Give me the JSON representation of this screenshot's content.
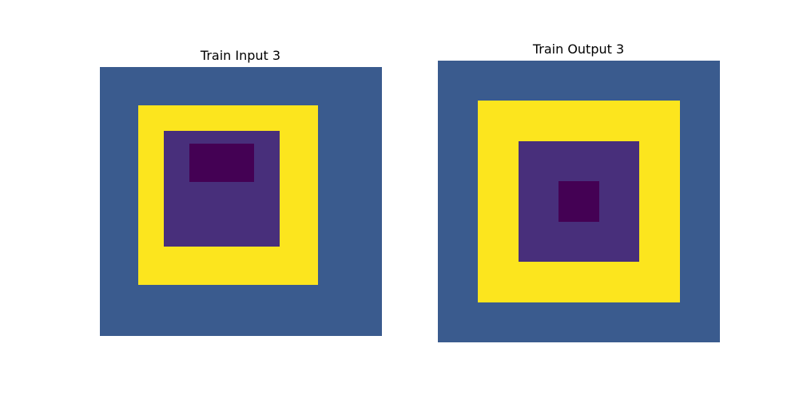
{
  "palette": {
    "0": "#440154",
    "1": "#482f7b",
    "2": "#3a5b8e",
    "3": "#fce51e"
  },
  "panels": [
    {
      "title": "Train Input 3",
      "grid": [
        [
          2,
          2,
          2,
          2,
          2,
          2,
          2,
          2,
          2,
          2,
          2,
          2,
          2,
          2,
          2,
          2,
          2,
          2,
          2,
          2,
          2,
          2
        ],
        [
          2,
          2,
          2,
          2,
          2,
          2,
          2,
          2,
          2,
          2,
          2,
          2,
          2,
          2,
          2,
          2,
          2,
          2,
          2,
          2,
          2,
          2
        ],
        [
          2,
          2,
          2,
          2,
          2,
          2,
          2,
          2,
          2,
          2,
          2,
          2,
          2,
          2,
          2,
          2,
          2,
          2,
          2,
          2,
          2,
          2
        ],
        [
          2,
          2,
          2,
          3,
          3,
          3,
          3,
          3,
          3,
          3,
          3,
          3,
          3,
          3,
          3,
          3,
          3,
          2,
          2,
          2,
          2,
          2
        ],
        [
          2,
          2,
          2,
          3,
          3,
          3,
          3,
          3,
          3,
          3,
          3,
          3,
          3,
          3,
          3,
          3,
          3,
          2,
          2,
          2,
          2,
          2
        ],
        [
          2,
          2,
          2,
          3,
          3,
          1,
          1,
          1,
          1,
          1,
          1,
          1,
          1,
          1,
          3,
          3,
          3,
          2,
          2,
          2,
          2,
          2
        ],
        [
          2,
          2,
          2,
          3,
          3,
          1,
          1,
          0,
          0,
          0,
          0,
          0,
          1,
          1,
          3,
          3,
          3,
          2,
          2,
          2,
          2,
          2
        ],
        [
          2,
          2,
          2,
          3,
          3,
          1,
          1,
          0,
          0,
          0,
          0,
          0,
          1,
          1,
          3,
          3,
          3,
          2,
          2,
          2,
          2,
          2
        ],
        [
          2,
          2,
          2,
          3,
          3,
          1,
          1,
          0,
          0,
          0,
          0,
          0,
          1,
          1,
          3,
          3,
          3,
          2,
          2,
          2,
          2,
          2
        ],
        [
          2,
          2,
          2,
          3,
          3,
          1,
          1,
          1,
          1,
          1,
          1,
          1,
          1,
          1,
          3,
          3,
          3,
          2,
          2,
          2,
          2,
          2
        ],
        [
          2,
          2,
          2,
          3,
          3,
          1,
          1,
          1,
          1,
          1,
          1,
          1,
          1,
          1,
          3,
          3,
          3,
          2,
          2,
          2,
          2,
          2
        ],
        [
          2,
          2,
          2,
          3,
          3,
          1,
          1,
          1,
          1,
          1,
          1,
          1,
          1,
          1,
          3,
          3,
          3,
          2,
          2,
          2,
          2,
          2
        ],
        [
          2,
          2,
          2,
          3,
          3,
          1,
          1,
          1,
          1,
          1,
          1,
          1,
          1,
          1,
          3,
          3,
          3,
          2,
          2,
          2,
          2,
          2
        ],
        [
          2,
          2,
          2,
          3,
          3,
          1,
          1,
          1,
          1,
          1,
          1,
          1,
          1,
          1,
          3,
          3,
          3,
          2,
          2,
          2,
          2,
          2
        ],
        [
          2,
          2,
          2,
          3,
          3,
          3,
          3,
          3,
          3,
          3,
          3,
          3,
          3,
          3,
          3,
          3,
          3,
          2,
          2,
          2,
          2,
          2
        ],
        [
          2,
          2,
          2,
          3,
          3,
          3,
          3,
          3,
          3,
          3,
          3,
          3,
          3,
          3,
          3,
          3,
          3,
          2,
          2,
          2,
          2,
          2
        ],
        [
          2,
          2,
          2,
          3,
          3,
          3,
          3,
          3,
          3,
          3,
          3,
          3,
          3,
          3,
          3,
          3,
          3,
          2,
          2,
          2,
          2,
          2
        ],
        [
          2,
          2,
          2,
          2,
          2,
          2,
          2,
          2,
          2,
          2,
          2,
          2,
          2,
          2,
          2,
          2,
          2,
          2,
          2,
          2,
          2,
          2
        ],
        [
          2,
          2,
          2,
          2,
          2,
          2,
          2,
          2,
          2,
          2,
          2,
          2,
          2,
          2,
          2,
          2,
          2,
          2,
          2,
          2,
          2,
          2
        ],
        [
          2,
          2,
          2,
          2,
          2,
          2,
          2,
          2,
          2,
          2,
          2,
          2,
          2,
          2,
          2,
          2,
          2,
          2,
          2,
          2,
          2,
          2
        ],
        [
          2,
          2,
          2,
          2,
          2,
          2,
          2,
          2,
          2,
          2,
          2,
          2,
          2,
          2,
          2,
          2,
          2,
          2,
          2,
          2,
          2,
          2
        ]
      ]
    },
    {
      "title": "Train Output 3",
      "grid": [
        [
          2,
          2,
          2,
          2,
          2,
          2,
          2
        ],
        [
          2,
          3,
          3,
          3,
          3,
          3,
          2
        ],
        [
          2,
          3,
          1,
          1,
          1,
          3,
          2
        ],
        [
          2,
          3,
          1,
          0,
          1,
          3,
          2
        ],
        [
          2,
          3,
          1,
          1,
          1,
          3,
          2
        ],
        [
          2,
          3,
          3,
          3,
          3,
          3,
          2
        ],
        [
          2,
          2,
          2,
          2,
          2,
          2,
          2
        ]
      ]
    }
  ]
}
